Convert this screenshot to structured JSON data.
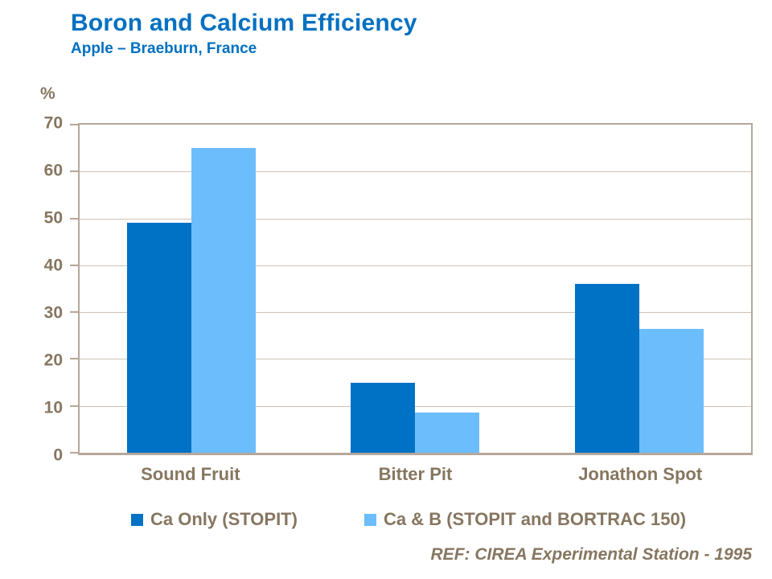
{
  "chart_data": {
    "type": "bar",
    "title": "Boron and Calcium Efficiency",
    "subtitle": "Apple – Braeburn, France",
    "ylabel": "%",
    "xlabel": "",
    "categories": [
      "Sound Fruit",
      "Bitter Pit",
      "Jonathon Spot"
    ],
    "series": [
      {
        "name": "Ca Only (STOPIT)",
        "color": "#0072C6",
        "values": [
          49,
          15,
          36
        ]
      },
      {
        "name": "Ca & B (STOPIT and BORTRAC 150)",
        "color": "#6CBDFC",
        "values": [
          65,
          8.5,
          26.5
        ]
      }
    ],
    "ylim": [
      0,
      70
    ],
    "yticks": [
      0,
      10,
      20,
      30,
      40,
      50,
      60,
      70
    ],
    "grid": true,
    "legend_position": "bottom"
  },
  "footer": {
    "reference": "REF: CIREA Experimental Station - 1995"
  },
  "colors": {
    "title_blue": "#0070C0",
    "axis_text": "#867660",
    "gridline": "#CDC3B7",
    "plot_border": "#B5A79A"
  }
}
